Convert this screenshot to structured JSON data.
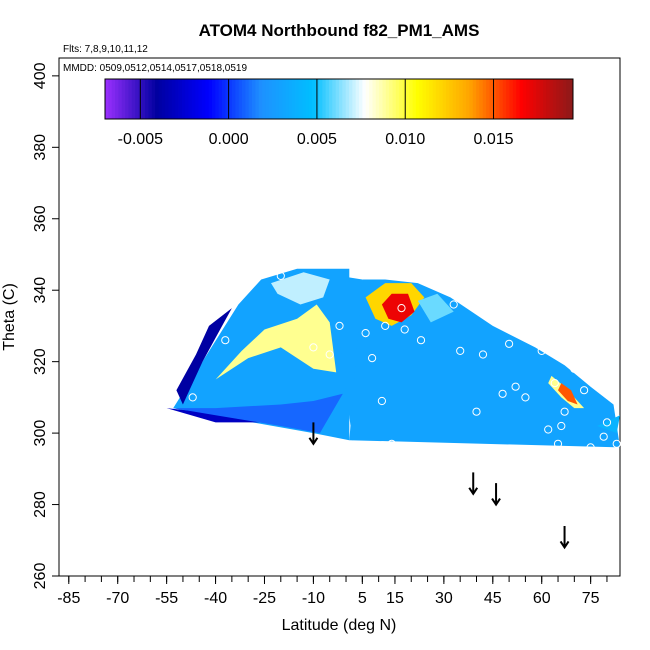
{
  "chart_data": {
    "type": "heatmap",
    "title": "ATOM4 Northbound f82_PM1_AMS",
    "subtitle_flights": "Flts: 7,8,9,10,11,12",
    "subtitle_dates": "MMDD: 0509,0512,0514,0517,0518,0519",
    "xlabel": "Latitude (deg N)",
    "ylabel": "Theta (C)",
    "xlim": [
      -88,
      84
    ],
    "ylim": [
      260,
      405
    ],
    "x_ticks": [
      -85,
      -70,
      -55,
      -40,
      -25,
      -10,
      5,
      15,
      30,
      45,
      60,
      75
    ],
    "x_tick_labels": [
      "-85",
      "-70",
      "-55",
      "-40",
      "-25",
      "-10",
      "5",
      "15",
      "30",
      "45",
      "60",
      "75"
    ],
    "y_ticks": [
      260,
      280,
      300,
      320,
      340,
      360,
      380,
      400
    ],
    "y_tick_labels": [
      "260",
      "280",
      "300",
      "320",
      "340",
      "360",
      "380",
      "400"
    ],
    "colorbar": {
      "range": [
        -0.007,
        0.0195
      ],
      "ticks": [
        -0.005,
        0.0,
        0.005,
        0.01,
        0.015
      ],
      "tick_labels": [
        "-0.005",
        "0.000",
        "0.005",
        "0.010",
        "0.015"
      ],
      "colors": [
        "#9b30ff",
        "#0000a0",
        "#0000ff",
        "#1e90ff",
        "#00bfff",
        "#ffffff",
        "#ffff00",
        "#ffa500",
        "#ff0000",
        "#8b1a1a"
      ]
    },
    "field_regions": [
      {
        "value": 0.003,
        "polygon": [
          [
            -53,
            307
          ],
          [
            -33,
            336
          ],
          [
            -26,
            343
          ],
          [
            -15,
            346
          ],
          [
            1,
            346
          ],
          [
            1,
            298
          ],
          [
            -10,
            300
          ],
          [
            -35,
            304
          ],
          [
            -48,
            306
          ]
        ]
      },
      {
        "value": -0.003,
        "polygon": [
          [
            -55,
            307
          ],
          [
            -45,
            306
          ],
          [
            -33,
            304
          ],
          [
            -25,
            303
          ],
          [
            -40,
            303
          ]
        ]
      },
      {
        "value": 0.001,
        "polygon": [
          [
            -53,
            307
          ],
          [
            -40,
            307
          ],
          [
            -20,
            308
          ],
          [
            -10,
            309
          ],
          [
            -1,
            311
          ],
          [
            -8,
            300
          ],
          [
            -20,
            302
          ],
          [
            -40,
            305
          ]
        ]
      },
      {
        "value": -0.004,
        "polygon": [
          [
            -50,
            308
          ],
          [
            -44,
            320
          ],
          [
            -38,
            330
          ],
          [
            -35,
            335
          ],
          [
            -42,
            330
          ],
          [
            -46,
            322
          ],
          [
            -52,
            312
          ]
        ]
      },
      {
        "value": 0.009,
        "polygon": [
          [
            -40,
            315
          ],
          [
            -30,
            321
          ],
          [
            -20,
            324
          ],
          [
            -10,
            318
          ],
          [
            -3,
            317
          ],
          [
            -5,
            331
          ],
          [
            -9,
            336
          ],
          [
            -15,
            332
          ],
          [
            -25,
            329
          ],
          [
            -32,
            323
          ]
        ]
      },
      {
        "value": 0.007,
        "polygon": [
          [
            -23,
            342
          ],
          [
            -13,
            345
          ],
          [
            -5,
            343
          ],
          [
            -7,
            338
          ],
          [
            -14,
            336
          ],
          [
            -21,
            339
          ]
        ]
      },
      {
        "value": 0.003,
        "polygon": [
          [
            -2,
            344
          ],
          [
            5,
            343
          ],
          [
            8,
            331
          ],
          [
            10,
            321
          ],
          [
            12,
            308
          ],
          [
            8,
            300
          ],
          [
            2,
            298
          ],
          [
            -1,
            318
          ],
          [
            -3,
            335
          ]
        ]
      },
      {
        "value": 0.003,
        "polygon": [
          [
            1,
            298
          ],
          [
            84,
            296
          ],
          [
            82,
            308
          ],
          [
            75,
            313
          ],
          [
            67,
            319
          ],
          [
            58,
            324
          ],
          [
            45,
            330
          ],
          [
            32,
            338
          ],
          [
            22,
            342
          ],
          [
            12,
            343
          ],
          [
            5,
            343
          ],
          [
            3,
            320
          ]
        ]
      },
      {
        "value": 0.012,
        "polygon": [
          [
            6,
            338
          ],
          [
            12,
            342
          ],
          [
            20,
            342
          ],
          [
            24,
            338
          ],
          [
            20,
            333
          ],
          [
            14,
            330
          ],
          [
            9,
            332
          ]
        ]
      },
      {
        "value": 0.017,
        "polygon": [
          [
            11,
            336
          ],
          [
            14,
            339
          ],
          [
            19,
            339
          ],
          [
            21,
            334
          ],
          [
            17,
            331
          ],
          [
            13,
            332
          ]
        ]
      },
      {
        "value": 0.006,
        "polygon": [
          [
            22,
            337
          ],
          [
            28,
            339
          ],
          [
            33,
            334
          ],
          [
            26,
            331
          ]
        ]
      },
      {
        "value": 0.009,
        "polygon": [
          [
            63,
            316
          ],
          [
            67,
            313
          ],
          [
            71,
            309
          ],
          [
            73,
            307
          ],
          [
            70,
            307
          ],
          [
            66,
            310
          ],
          [
            62,
            314
          ]
        ]
      },
      {
        "value": 0.015,
        "polygon": [
          [
            66,
            314
          ],
          [
            69,
            312
          ],
          [
            71,
            308
          ],
          [
            68,
            309
          ],
          [
            65,
            312
          ]
        ]
      },
      {
        "value": 0.004,
        "polygon": [
          [
            77,
            302
          ],
          [
            84,
            305
          ],
          [
            83,
            300
          ]
        ]
      }
    ],
    "sample_points": [
      [
        -47,
        310
      ],
      [
        -37,
        326
      ],
      [
        -20,
        344
      ],
      [
        -10,
        324
      ],
      [
        -5,
        322
      ],
      [
        -2,
        330
      ],
      [
        4,
        347
      ],
      [
        6,
        328
      ],
      [
        8,
        321
      ],
      [
        12,
        330
      ],
      [
        17,
        335
      ],
      [
        18,
        329
      ],
      [
        11,
        309
      ],
      [
        14,
        297
      ],
      [
        23,
        326
      ],
      [
        33,
        336
      ],
      [
        35,
        323
      ],
      [
        40,
        306
      ],
      [
        42,
        322
      ],
      [
        48,
        311
      ],
      [
        50,
        325
      ],
      [
        52,
        313
      ],
      [
        55,
        310
      ],
      [
        60,
        323
      ],
      [
        62,
        301
      ],
      [
        64,
        314
      ],
      [
        65,
        297
      ],
      [
        66,
        302
      ],
      [
        67,
        306
      ],
      [
        70,
        318
      ],
      [
        73,
        312
      ],
      [
        75,
        296
      ],
      [
        79,
        299
      ],
      [
        80,
        303
      ],
      [
        83,
        297
      ]
    ],
    "arrows": [
      {
        "x": -10,
        "y_top": 303,
        "y_bottom": 297
      },
      {
        "x": 39,
        "y_top": 289,
        "y_bottom": 283
      },
      {
        "x": 46,
        "y_top": 286,
        "y_bottom": 280
      },
      {
        "x": 67,
        "y_top": 274,
        "y_bottom": 268
      }
    ]
  }
}
